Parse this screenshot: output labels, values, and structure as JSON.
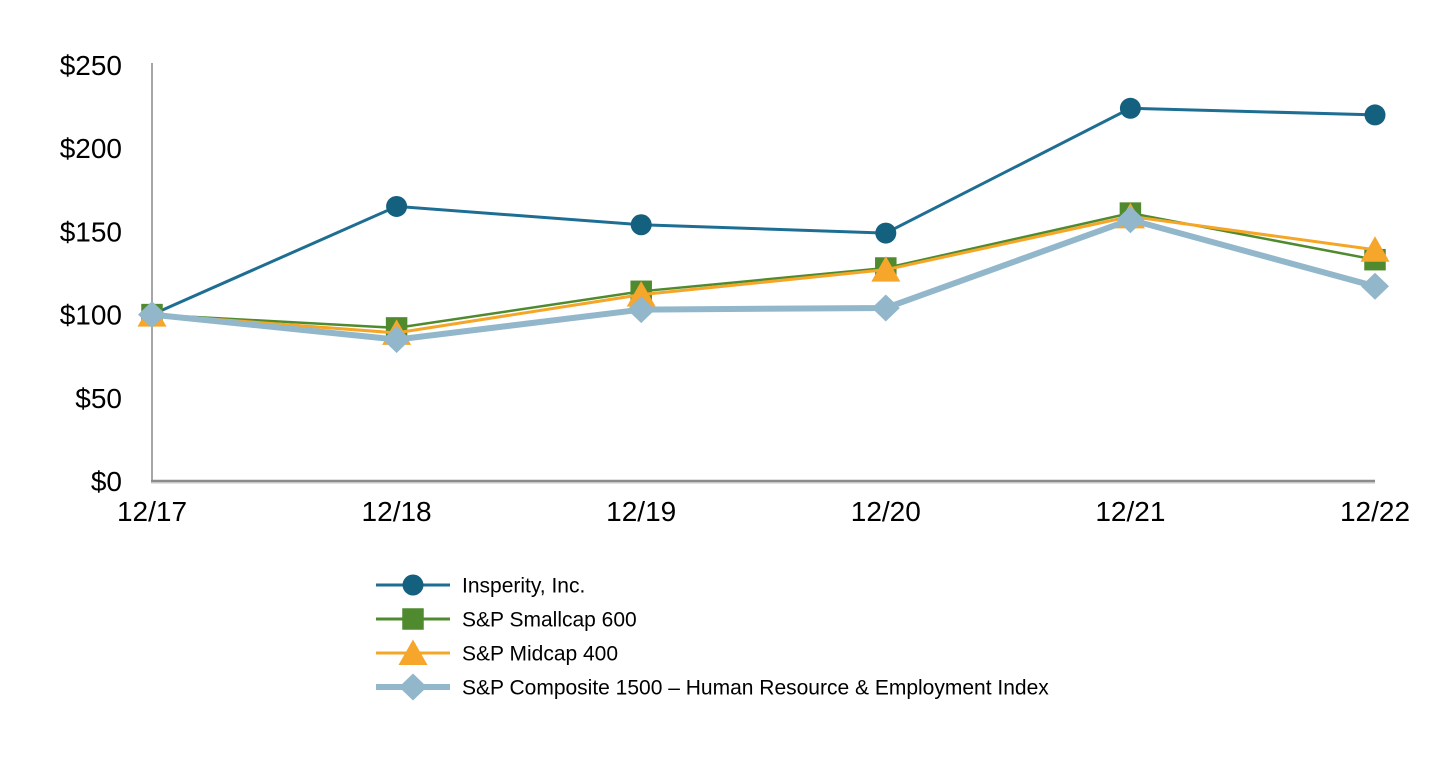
{
  "chart_data": {
    "type": "line",
    "title": "",
    "xlabel": "",
    "ylabel": "",
    "grid": false,
    "legend_position": "bottom-left",
    "categories": [
      "12/17",
      "12/18",
      "12/19",
      "12/20",
      "12/21",
      "12/22"
    ],
    "y_ticks": [
      {
        "label": "$0",
        "value": 0
      },
      {
        "label": "$50",
        "value": 50
      },
      {
        "label": "$100",
        "value": 100
      },
      {
        "label": "$150",
        "value": 150
      },
      {
        "label": "$200",
        "value": 200
      },
      {
        "label": "$250",
        "value": 250
      }
    ],
    "ylim": [
      0,
      250
    ],
    "axis_color": "#8C8C8C",
    "axis_vertical_color": "#A6A6A6",
    "text_color": "#000000",
    "series": [
      {
        "name": "Insperity, Inc.",
        "marker": "circle",
        "color": "#1E6E94",
        "marker_color": "#14607F",
        "line_width": 3,
        "values": [
          100,
          165,
          154,
          149,
          224,
          220
        ]
      },
      {
        "name": "S&P Smallcap 600",
        "marker": "square",
        "color": "#4F8A2F",
        "marker_color": "#4F8A2F",
        "line_width": 2.5,
        "values": [
          100,
          92,
          114,
          128,
          161,
          133
        ]
      },
      {
        "name": "S&P Midcap 400",
        "marker": "triangle",
        "color": "#F5A627",
        "marker_color": "#F5A62B",
        "line_width": 3,
        "values": [
          100,
          89,
          112,
          127,
          159,
          139
        ]
      },
      {
        "name": "S&P Composite 1500 – Human Resource & Employment Index",
        "marker": "diamond",
        "color": "#92B7CB",
        "marker_color": "#92B7CB",
        "line_width": 6,
        "values": [
          100,
          85,
          103,
          104,
          157,
          117
        ]
      }
    ]
  }
}
